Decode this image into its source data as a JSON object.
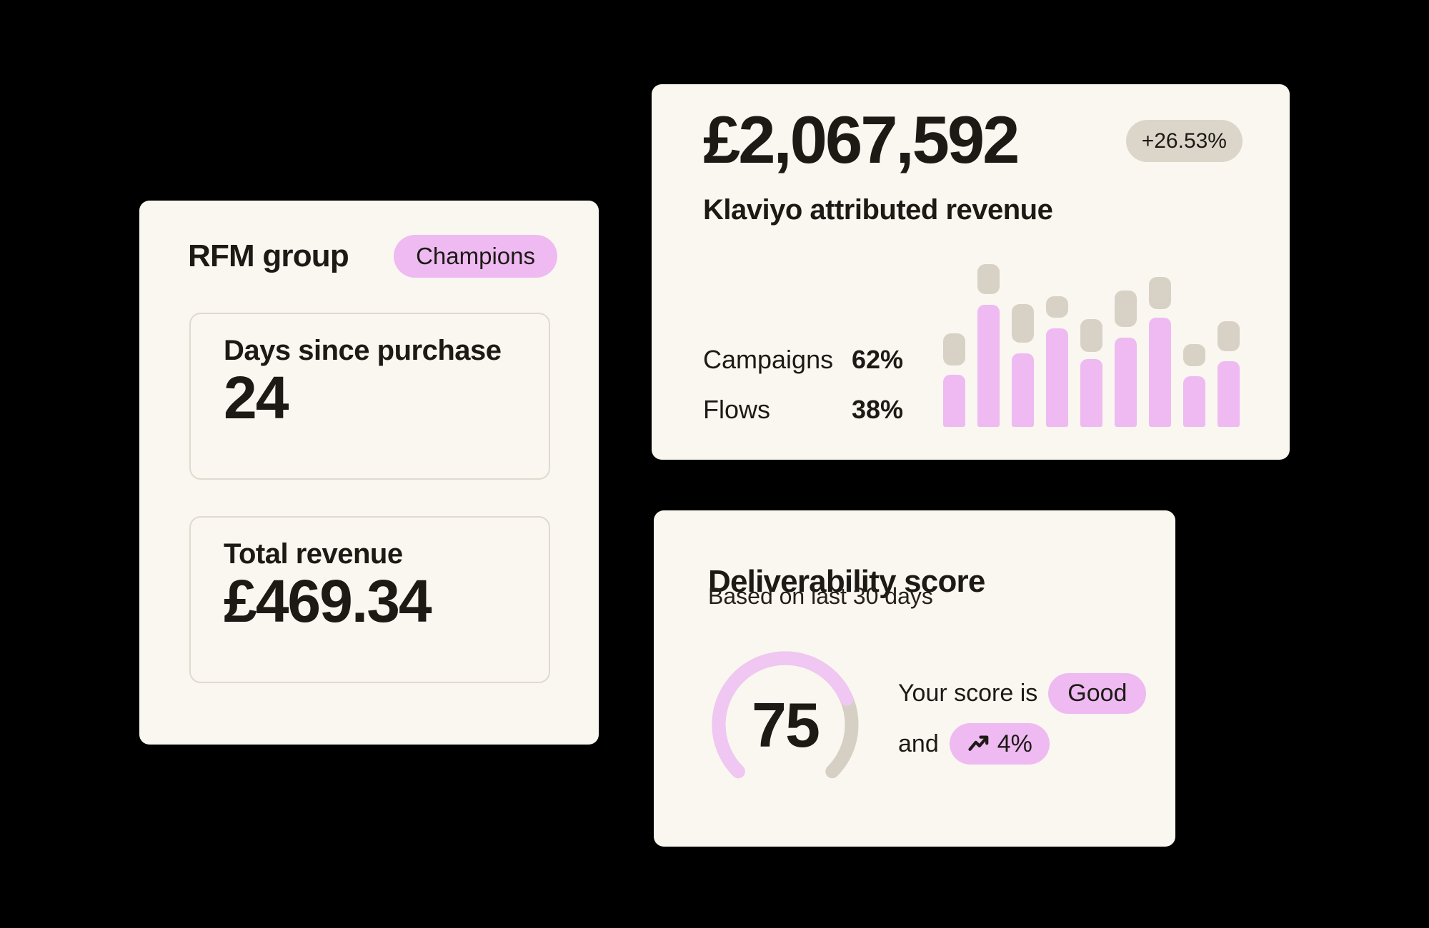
{
  "background": "#000000",
  "colors": {
    "card_bg": "#faf6f0",
    "text": "#1d1a16",
    "pink": "#eebaf1",
    "arc_pink": "#f0c6f2",
    "arc_track": "#d6d0c4",
    "bar_cap_beige": "#d8d2c6",
    "change_badge_bg": "#dcd6ca",
    "box_border": "#e0dacf"
  },
  "rfm_card": {
    "title": "RFM group",
    "badge": "Champions",
    "stats": [
      {
        "label": "Days since purchase",
        "value": "24"
      },
      {
        "label": "Total revenue",
        "value": "£469.34"
      }
    ]
  },
  "revenue_card": {
    "amount": "£2,067,592",
    "change_badge": "+26.53%",
    "subtitle": "Klaviyo attributed revenue",
    "breakdown": [
      {
        "label": "Campaigns",
        "value": "62%"
      },
      {
        "label": "Flows",
        "value": "38%"
      }
    ],
    "chart_data": {
      "type": "bar",
      "title": "Klaviyo attributed revenue mini bar chart (decorative, unlabeled axes)",
      "categories": [
        "1",
        "2",
        "3",
        "4",
        "5",
        "6",
        "7",
        "8",
        "9"
      ],
      "series": [
        {
          "name": "pink-bar",
          "color": "#eebaf1",
          "values": [
            73,
            171,
            103,
            138,
            95,
            125,
            153,
            71,
            92
          ]
        },
        {
          "name": "beige-cap",
          "color": "#d8d2c6",
          "values": [
            45,
            42,
            54,
            30,
            46,
            51,
            45,
            31,
            42
          ]
        }
      ],
      "cap_gap_above_bar": [
        13,
        15,
        15,
        15,
        10,
        15,
        12,
        14,
        14
      ],
      "unit": "px",
      "xlabel": "",
      "ylabel": "",
      "grid": false,
      "legend": false
    }
  },
  "deliverability_card": {
    "title": "Deliverability score",
    "subtitle": "Based on last 30 days",
    "gauge": {
      "value": 75,
      "max": 100,
      "start_angle_deg": 225,
      "sweep_deg": 270,
      "radius": 93,
      "stroke": 19,
      "value_color": "#f0c6f2",
      "track_color": "#d6d0c4"
    },
    "score_line": {
      "prefix": "Your score is",
      "badge": "Good"
    },
    "trend_line": {
      "prefix": "and",
      "badge": "4%",
      "icon": "trending-up"
    }
  }
}
